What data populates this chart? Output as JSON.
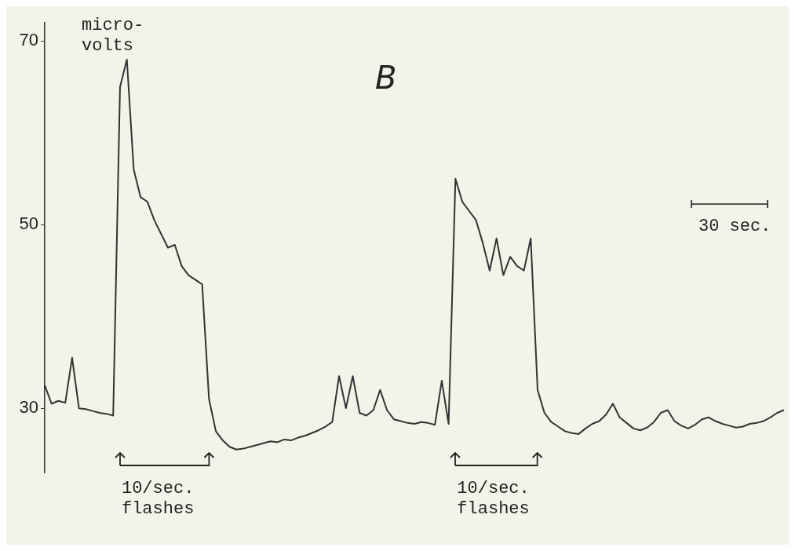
{
  "chart_data": {
    "type": "line",
    "title": "B",
    "ylabel": "micro-\nvolts",
    "categories": [
      null,
      null,
      null,
      null,
      null,
      null,
      null,
      null,
      null,
      null,
      null,
      null,
      null,
      null,
      null,
      null,
      null,
      null,
      null,
      null,
      null,
      null,
      null,
      null,
      null,
      null,
      null,
      null,
      null,
      null,
      null,
      null,
      null,
      null,
      null,
      null,
      null,
      null,
      null,
      null,
      null,
      null,
      null,
      null,
      null,
      null,
      null,
      null,
      null,
      null,
      null,
      null,
      null,
      null,
      null,
      null,
      null,
      null,
      null,
      null,
      null,
      null,
      null,
      null,
      null,
      null,
      null,
      null,
      null,
      null,
      null,
      null,
      null,
      null,
      null,
      null,
      null,
      null,
      null,
      null,
      null,
      null,
      null,
      null,
      null,
      null,
      null,
      null,
      null,
      null,
      null,
      null,
      null,
      null,
      null,
      null,
      null,
      null,
      null,
      null,
      null,
      null,
      null,
      null,
      null,
      null,
      null,
      null,
      null
    ],
    "series": [
      {
        "color": "#333333",
        "values": [
          32.5,
          30.5,
          30.8,
          30.6,
          35.5,
          30.0,
          29.9,
          29.7,
          29.5,
          29.4,
          29.2,
          65,
          68,
          56,
          53,
          52.5,
          50.5,
          49,
          47.5,
          47.8,
          45.5,
          44.5,
          44,
          43.5,
          31,
          27.5,
          26.5,
          25.8,
          25.5,
          25.6,
          25.8,
          26,
          26.2,
          26.4,
          26.3,
          26.6,
          26.5,
          26.8,
          27,
          27.3,
          27.6,
          28,
          28.5,
          33.5,
          30,
          33.5,
          29.5,
          29.2,
          29.8,
          32,
          29.8,
          28.8,
          28.6,
          28.4,
          28.3,
          28.5,
          28.4,
          28.2,
          33,
          28.3,
          55,
          52.5,
          51.5,
          50.5,
          48,
          45,
          48.5,
          44.5,
          46.5,
          45.5,
          45,
          48.5,
          32,
          29.5,
          28.5,
          28,
          27.5,
          27.3,
          27.2,
          27.8,
          28.3,
          28.6,
          29.3,
          30.5,
          29,
          28.4,
          27.8,
          27.6,
          27.9,
          28.5,
          29.5,
          29.8,
          28.6,
          28.1,
          27.8,
          28.2,
          28.8,
          29,
          28.6,
          28.3,
          28.1,
          27.9,
          28,
          28.3,
          28.4,
          28.6,
          29,
          29.5,
          29.8
        ]
      }
    ],
    "ylim": [
      23,
      72
    ],
    "yticks": [
      30,
      50,
      70
    ],
    "grid": false,
    "legend": false,
    "marker": "none",
    "line_style": "solid",
    "tick_labels": "y",
    "annotations": [
      "30 sec.",
      "10/sec.\nflashes",
      "10/sec.\nflashes"
    ]
  }
}
